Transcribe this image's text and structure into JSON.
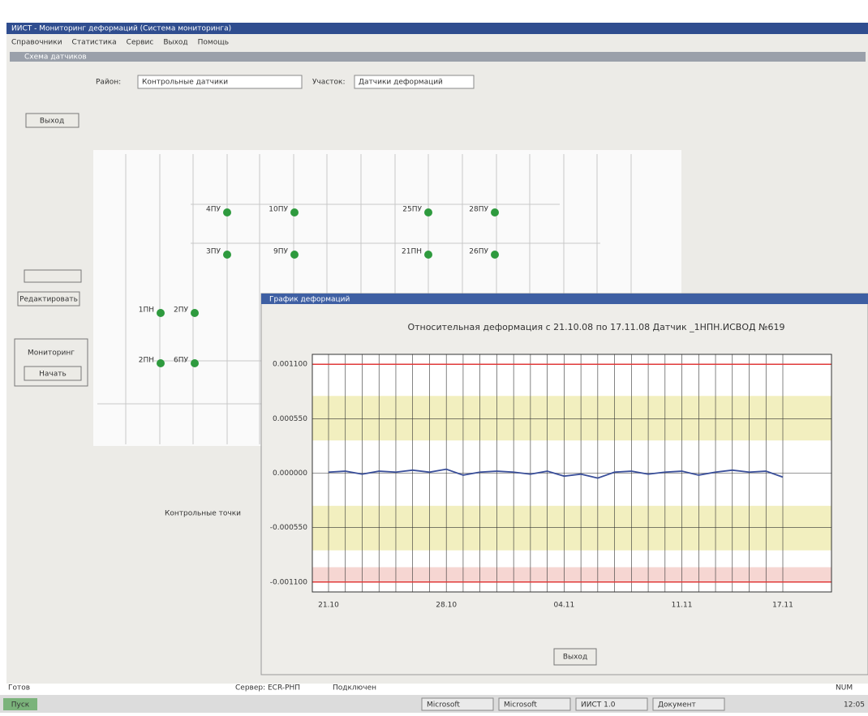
{
  "window": {
    "title": "ИИСТ - Мониторинг деформаций (Система мониторинга)",
    "menu": [
      "Справочники",
      "Статистика",
      "Сервис",
      "Выход",
      "Помощь"
    ]
  },
  "form": {
    "title": "Схема датчиков",
    "district_label": "Район:",
    "district": "Контрольные датчики",
    "section_label": "Участок:",
    "section": "Датчики деформаций",
    "exit": "Выход",
    "edit": "Редактировать",
    "monitoring": "Мониторинг",
    "start": "Начать",
    "points_label": "Контрольные точки"
  },
  "scheme": {
    "nodes": [
      "4ПУ",
      "10ПУ",
      "25ПУ",
      "28ПУ",
      "3ПУ",
      "9ПУ",
      "21ПН",
      "26ПУ",
      "1ПН",
      "2ПУ",
      "2ПН",
      "6ПУ"
    ]
  },
  "chart_window": {
    "title": "График деформаций",
    "close": "Выход"
  },
  "chart_data": {
    "type": "line",
    "title": "Относительная деформация с 21.10.08 по 17.11.08 Датчик _1НПН.ИСВОД №619",
    "x": [
      "21.10",
      "22.10",
      "23.10",
      "24.10",
      "25.10",
      "26.10",
      "27.10",
      "28.10",
      "29.10",
      "30.10",
      "31.10",
      "01.11",
      "02.11",
      "03.11",
      "04.11",
      "05.11",
      "06.11",
      "07.11",
      "08.11",
      "09.11",
      "10.11",
      "11.11",
      "12.11",
      "13.11",
      "14.11",
      "15.11",
      "16.11",
      "17.11"
    ],
    "values": [
      1e-05,
      2e-05,
      -1e-05,
      2e-05,
      1e-05,
      3e-05,
      1e-05,
      4e-05,
      -2e-05,
      1e-05,
      2e-05,
      1e-05,
      -1e-05,
      2e-05,
      -3e-05,
      -1e-05,
      -5e-05,
      1e-05,
      2e-05,
      -1e-05,
      1e-05,
      2e-05,
      -2e-05,
      1e-05,
      3e-05,
      1e-05,
      2e-05,
      -4e-05
    ],
    "color": "#3a4f9a",
    "ylim": [
      -0.0012,
      0.0012
    ],
    "yticks": [
      {
        "value": 0.0011,
        "label": "0.001100"
      },
      {
        "value": 0.00055,
        "label": "0.000550"
      },
      {
        "value": 0,
        "label": "0.000000"
      },
      {
        "value": -0.00055,
        "label": "-0.000550"
      },
      {
        "value": -0.0011,
        "label": "-0.001100"
      }
    ],
    "xticks": [
      "21.10",
      "28.10",
      "04.11",
      "11.11",
      "17.11"
    ],
    "limit_lines": [
      0.0011,
      -0.0011
    ],
    "limit_color": "#e03a3a",
    "bands": [
      {
        "range": [
          0.00033,
          0.00078
        ],
        "color": "#f2efbf"
      },
      {
        "range": [
          -0.00078,
          -0.00033
        ],
        "color": "#f2efbf"
      },
      {
        "range": [
          -0.0011,
          -0.00095
        ],
        "color": "#f6d6d2"
      }
    ],
    "grid": true
  },
  "status": [
    "Готов",
    "Сервер: ECR-РНП",
    "Подключен",
    "NUM"
  ],
  "taskbar": {
    "start": "Пуск",
    "items": [
      "Microsoft",
      "Microsoft",
      "ИИСТ 1.0",
      "Документ"
    ],
    "clock": "12:05"
  }
}
